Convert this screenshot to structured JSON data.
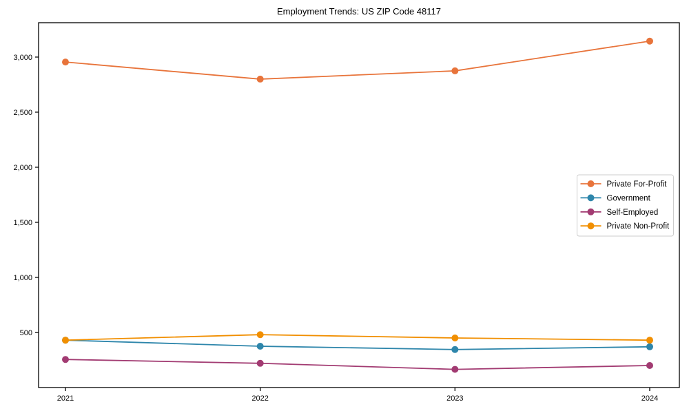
{
  "page": {
    "title": "Employment Trends: US ZIP Code 48117"
  },
  "chart_data": {
    "type": "line",
    "title": "Employment Trends: US ZIP Code 48117",
    "xlabel": "",
    "ylabel": "",
    "grid": false,
    "background": "#ffffff",
    "axis_color": "#000000",
    "legend_position": "center-right",
    "legend_border_color": "#cccccc",
    "marker": "circle",
    "x": [
      2021,
      2022,
      2023,
      2024
    ],
    "x_tick_labels": [
      "2021",
      "2022",
      "2023",
      "2024"
    ],
    "ylim": [
      0,
      3312
    ],
    "yticks": [
      500,
      1000,
      1500,
      2000,
      2500,
      3000
    ],
    "ytick_labels": [
      "500",
      "1,000",
      "1,500",
      "2,000",
      "2,500",
      "3,000"
    ],
    "series": [
      {
        "name": "Private For-Profit",
        "color": "#e8743b",
        "values": [
          2955,
          2800,
          2875,
          3145
        ]
      },
      {
        "name": "Government",
        "color": "#2e86ab",
        "values": [
          430,
          375,
          345,
          370
        ]
      },
      {
        "name": "Self-Employed",
        "color": "#a23b72",
        "values": [
          255,
          220,
          165,
          200
        ]
      },
      {
        "name": "Private Non-Profit",
        "color": "#f18f01",
        "values": [
          430,
          480,
          450,
          430
        ]
      }
    ]
  }
}
